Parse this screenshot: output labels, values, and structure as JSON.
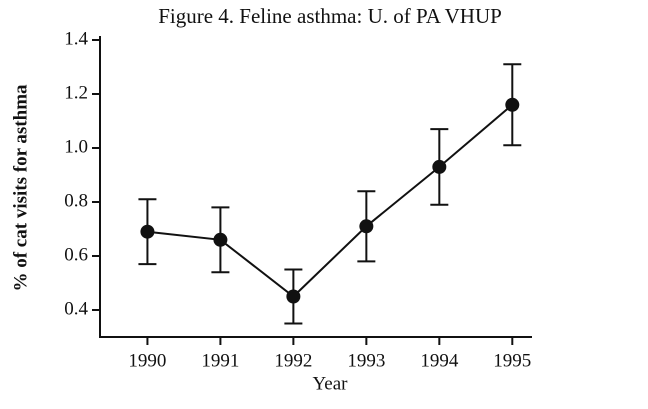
{
  "chart_data": {
    "type": "line",
    "title": "Figure 4.  Feline asthma: U. of PA VHUP",
    "x_label": "Year",
    "y_label": "% of cat visits for asthma",
    "x": [
      1990,
      1991,
      1992,
      1993,
      1994,
      1995
    ],
    "values": [
      0.69,
      0.66,
      0.45,
      0.71,
      0.93,
      1.16
    ],
    "errors": [
      0.12,
      0.12,
      0.1,
      0.13,
      0.14,
      0.15
    ],
    "color": "#111111",
    "xlim": [
      1989.35,
      1995.27
    ],
    "xticks": [
      1990,
      1991,
      1992,
      1993,
      1994,
      1995
    ],
    "ylim": [
      0.3,
      1.4
    ],
    "yticks": [
      0.4,
      0.6,
      0.8,
      {
        "value": 1,
        "label": "1.0"
      },
      1.2,
      1.4
    ],
    "grid": false
  }
}
